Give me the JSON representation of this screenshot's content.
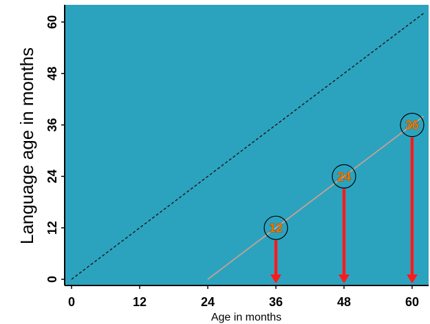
{
  "chart_data": {
    "type": "line",
    "xlabel": "Age in months",
    "ylabel": "Language age in months",
    "xlim": [
      0,
      62
    ],
    "ylim": [
      0,
      64
    ],
    "x_ticks": [
      0,
      12,
      24,
      36,
      48,
      60
    ],
    "y_ticks": [
      0,
      12,
      24,
      36,
      48,
      60
    ],
    "background_color": "#2ba3bf",
    "grid": false,
    "series": [
      {
        "style": "dashed",
        "color": "#1a1a1a",
        "x": [
          0,
          62
        ],
        "y": [
          0,
          62
        ]
      },
      {
        "style": "solid",
        "color": "#d9a089",
        "x": [
          24,
          62
        ],
        "y": [
          0,
          38
        ]
      }
    ],
    "annotations": [
      {
        "x": 36,
        "y": 12,
        "label": "12"
      },
      {
        "x": 48,
        "y": 24,
        "label": "24"
      },
      {
        "x": 60,
        "y": 36,
        "label": "36"
      }
    ],
    "arrow_color": "#ff1a1a"
  }
}
